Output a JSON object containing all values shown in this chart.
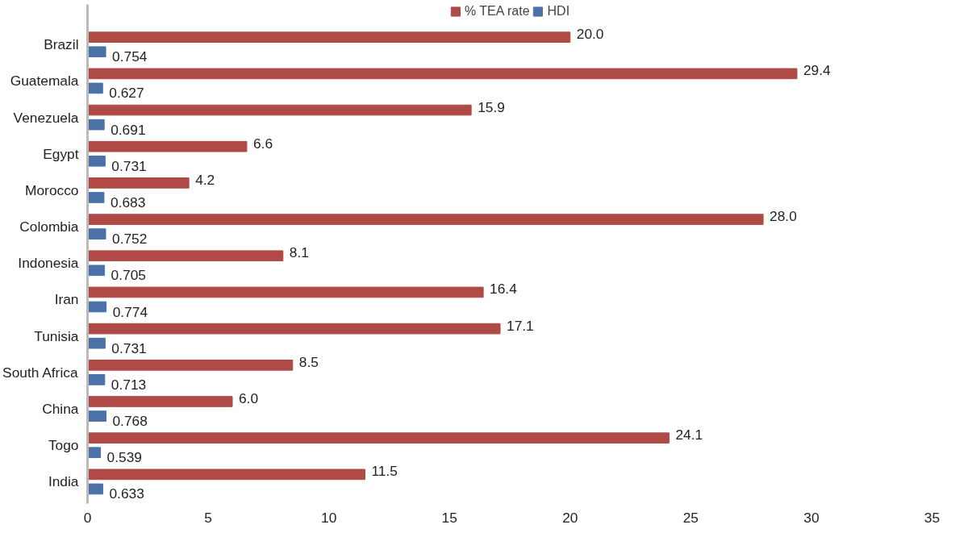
{
  "chart_data": {
    "type": "bar",
    "orientation": "horizontal",
    "categories": [
      "Brazil",
      "Guatemala",
      "Venezuela",
      "Egypt",
      "Morocco",
      "Colombia",
      "Indonesia",
      "Iran",
      "Tunisia",
      "South Africa",
      "China",
      "Togo",
      "India"
    ],
    "series": [
      {
        "name": "% TEA rate",
        "color": "#b04a47",
        "values": [
          20.0,
          29.4,
          15.9,
          6.6,
          4.2,
          28.0,
          8.1,
          16.4,
          17.1,
          8.5,
          6.0,
          24.1,
          11.5
        ],
        "value_labels": [
          "20.0",
          "29.4",
          "15.9",
          "6.6",
          "4.2",
          "28.0",
          "8.1",
          "16.4",
          "17.1",
          "8.5",
          "6.0",
          "24.1",
          "11.5"
        ]
      },
      {
        "name": "HDI",
        "color": "#4a72a8",
        "values": [
          0.754,
          0.627,
          0.691,
          0.731,
          0.683,
          0.752,
          0.705,
          0.774,
          0.731,
          0.713,
          0.768,
          0.539,
          0.633
        ],
        "value_labels": [
          "0.754",
          "0.627",
          "0.691",
          "0.731",
          "0.683",
          "0.752",
          "0.705",
          "0.774",
          "0.731",
          "0.713",
          "0.768",
          "0.539",
          "0.633"
        ]
      }
    ],
    "xlim": [
      0,
      35
    ],
    "xticks": [
      0,
      5,
      10,
      15,
      20,
      25,
      30,
      35
    ],
    "grid": false,
    "legend": "top"
  }
}
